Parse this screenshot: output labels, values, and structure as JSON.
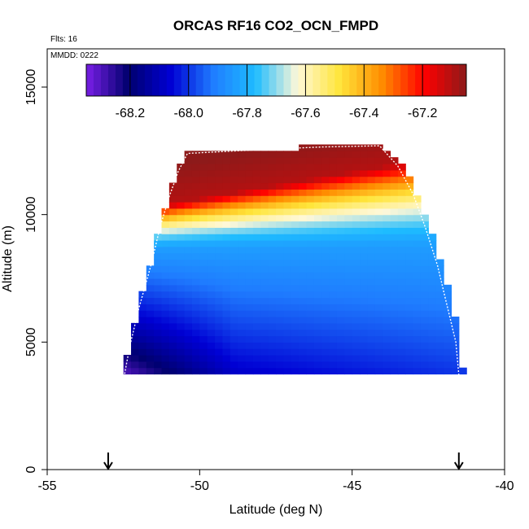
{
  "chart_data": {
    "type": "heatmap",
    "title": "ORCAS RF16 CO2_OCN_FMPD",
    "annotations": {
      "flights": "Flts: 16",
      "mmdd": "MMDD: 0222"
    },
    "xlabel": "Latitude (deg N)",
    "ylabel": "Altitude (m)",
    "xlim": [
      -55,
      -40
    ],
    "ylim": [
      0,
      16500
    ],
    "xticks": [
      -55,
      -50,
      -45,
      -40
    ],
    "xtick_labels": [
      "-55",
      "-50",
      "-45",
      "-40"
    ],
    "yticks": [
      0,
      5000,
      10000,
      15000
    ],
    "ytick_labels": [
      "0",
      "5000",
      "10000",
      "15000"
    ],
    "colorbar": {
      "min": -68.35,
      "max": -67.05,
      "ticks": [
        -68.2,
        -68.0,
        -67.8,
        -67.6,
        -67.4,
        -67.2
      ],
      "tick_labels": [
        "-68.2",
        "-68.0",
        "-67.8",
        "-67.6",
        "-67.4",
        "-67.2"
      ],
      "colors": [
        "#7a1fe6",
        "#00006e",
        "#0000d4",
        "#1f7cff",
        "#1ebcff",
        "#fff8d8",
        "#ffe53a",
        "#ff8c00",
        "#ff0000",
        "#8c1a1a"
      ]
    },
    "field": {
      "lat_range": [
        -52.5,
        -41.5
      ],
      "alt_range": [
        3500,
        12700
      ],
      "bottom_value": -68.1,
      "top_value": -67.1,
      "left_low_value": -68.3,
      "right_mid_value": -67.85
    },
    "envelope": {
      "lat": [
        -52.5,
        -52.3,
        -52.0,
        -51.6,
        -51.3,
        -51.0,
        -50.7,
        -50.4,
        -48.0,
        -46.0,
        -44.1,
        -43.5,
        -43.0,
        -42.6,
        -42.2,
        -41.9,
        -41.6,
        -41.5
      ],
      "alt": [
        3500,
        4800,
        6300,
        8000,
        9500,
        10700,
        11700,
        12400,
        12550,
        12650,
        12700,
        11900,
        10800,
        9500,
        8000,
        6500,
        5000,
        3700
      ]
    },
    "markers": [
      {
        "lat": -53.0,
        "symbol": "arrow-down"
      },
      {
        "lat": -41.5,
        "symbol": "arrow-down"
      }
    ]
  }
}
